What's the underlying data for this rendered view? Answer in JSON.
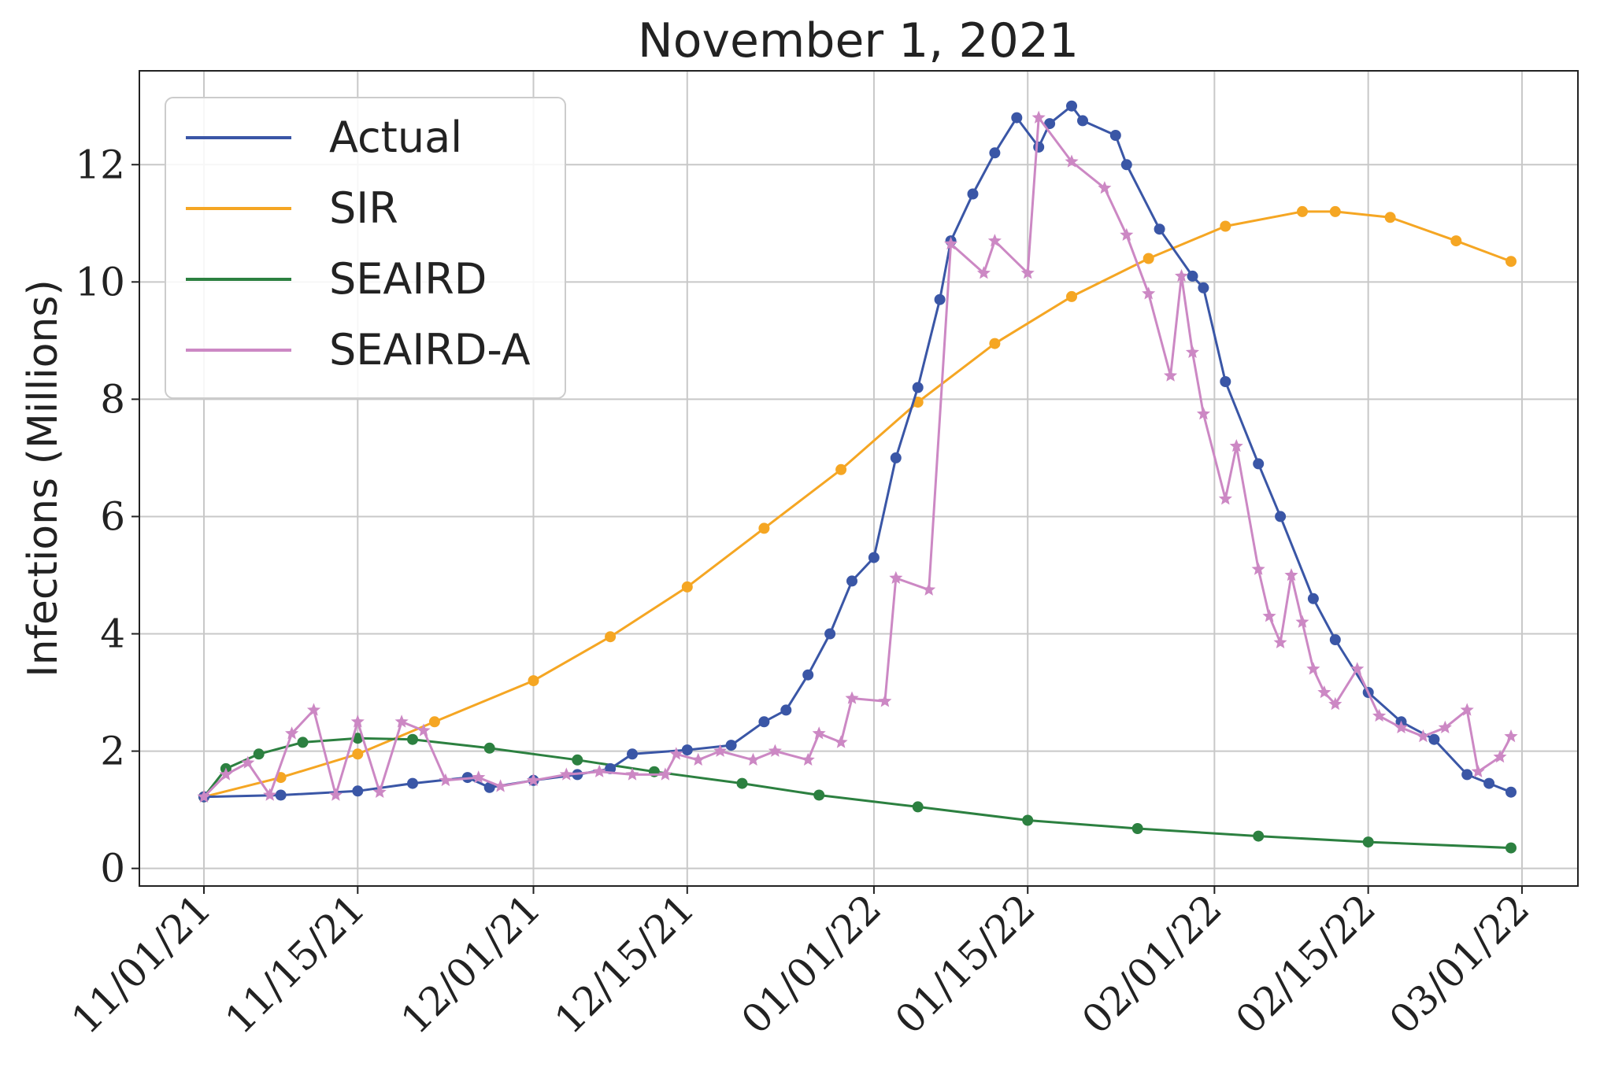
{
  "chart_data": {
    "type": "line",
    "title": "November 1, 2021",
    "xlabel": "",
    "ylabel": "Infections (Millions)",
    "x_start": "2021-11-01",
    "x_end": "2022-02-28",
    "ylim": [
      -0.3,
      13.6
    ],
    "grid": true,
    "legend_position": "top-left",
    "x_ticks": [
      {
        "date": "2021-11-01",
        "label": "11/01/21"
      },
      {
        "date": "2021-11-15",
        "label": "11/15/21"
      },
      {
        "date": "2021-12-01",
        "label": "12/01/21"
      },
      {
        "date": "2021-12-15",
        "label": "12/15/21"
      },
      {
        "date": "2022-01-01",
        "label": "01/01/22"
      },
      {
        "date": "2022-01-15",
        "label": "01/15/22"
      },
      {
        "date": "2022-02-01",
        "label": "02/01/22"
      },
      {
        "date": "2022-02-15",
        "label": "02/15/22"
      },
      {
        "date": "2022-03-01",
        "label": "03/01/22"
      }
    ],
    "y_ticks": [
      {
        "value": 0,
        "label": "0"
      },
      {
        "value": 2,
        "label": "2"
      },
      {
        "value": 4,
        "label": "4"
      },
      {
        "value": 6,
        "label": "6"
      },
      {
        "value": 8,
        "label": "8"
      },
      {
        "value": 10,
        "label": "10"
      },
      {
        "value": 12,
        "label": "12"
      }
    ],
    "series": [
      {
        "name": "Actual",
        "color": "#3a56a6",
        "marker": "circle",
        "points": [
          [
            "2021-11-01",
            1.22
          ],
          [
            "2021-11-08",
            1.25
          ],
          [
            "2021-11-15",
            1.32
          ],
          [
            "2021-11-20",
            1.45
          ],
          [
            "2021-11-25",
            1.55
          ],
          [
            "2021-11-27",
            1.38
          ],
          [
            "2021-12-01",
            1.5
          ],
          [
            "2021-12-05",
            1.6
          ],
          [
            "2021-12-08",
            1.7
          ],
          [
            "2021-12-10",
            1.95
          ],
          [
            "2021-12-15",
            2.02
          ],
          [
            "2021-12-19",
            2.1
          ],
          [
            "2021-12-22",
            2.5
          ],
          [
            "2021-12-24",
            2.7
          ],
          [
            "2021-12-26",
            3.3
          ],
          [
            "2021-12-28",
            4.0
          ],
          [
            "2021-12-30",
            4.9
          ],
          [
            "2022-01-01",
            5.3
          ],
          [
            "2022-01-03",
            7.0
          ],
          [
            "2022-01-05",
            8.2
          ],
          [
            "2022-01-07",
            9.7
          ],
          [
            "2022-01-08",
            10.7
          ],
          [
            "2022-01-10",
            11.5
          ],
          [
            "2022-01-12",
            12.2
          ],
          [
            "2022-01-14",
            12.8
          ],
          [
            "2022-01-16",
            12.3
          ],
          [
            "2022-01-17",
            12.7
          ],
          [
            "2022-01-19",
            13.0
          ],
          [
            "2022-01-20",
            12.75
          ],
          [
            "2022-01-23",
            12.5
          ],
          [
            "2022-01-24",
            12.0
          ],
          [
            "2022-01-27",
            10.9
          ],
          [
            "2022-01-30",
            10.1
          ],
          [
            "2022-01-31",
            9.9
          ],
          [
            "2022-02-02",
            8.3
          ],
          [
            "2022-02-05",
            6.9
          ],
          [
            "2022-02-07",
            6.0
          ],
          [
            "2022-02-10",
            4.6
          ],
          [
            "2022-02-12",
            3.9
          ],
          [
            "2022-02-15",
            3.0
          ],
          [
            "2022-02-18",
            2.5
          ],
          [
            "2022-02-21",
            2.2
          ],
          [
            "2022-02-24",
            1.6
          ],
          [
            "2022-02-26",
            1.45
          ],
          [
            "2022-02-28",
            1.3
          ]
        ]
      },
      {
        "name": "SIR",
        "color": "#f5a623",
        "marker": "circle",
        "points": [
          [
            "2021-11-01",
            1.22
          ],
          [
            "2021-11-08",
            1.55
          ],
          [
            "2021-11-15",
            1.95
          ],
          [
            "2021-11-22",
            2.5
          ],
          [
            "2021-12-01",
            3.2
          ],
          [
            "2021-12-08",
            3.95
          ],
          [
            "2021-12-15",
            4.8
          ],
          [
            "2021-12-22",
            5.8
          ],
          [
            "2021-12-29",
            6.8
          ],
          [
            "2022-01-05",
            7.95
          ],
          [
            "2022-01-12",
            8.95
          ],
          [
            "2022-01-19",
            9.75
          ],
          [
            "2022-01-26",
            10.4
          ],
          [
            "2022-02-02",
            10.95
          ],
          [
            "2022-02-09",
            11.2
          ],
          [
            "2022-02-12",
            11.2
          ],
          [
            "2022-02-17",
            11.1
          ],
          [
            "2022-02-23",
            10.7
          ],
          [
            "2022-02-28",
            10.35
          ]
        ]
      },
      {
        "name": "SEAIRD",
        "color": "#2c8040",
        "marker": "circle",
        "points": [
          [
            "2021-11-01",
            1.22
          ],
          [
            "2021-11-03",
            1.7
          ],
          [
            "2021-11-06",
            1.95
          ],
          [
            "2021-11-10",
            2.15
          ],
          [
            "2021-11-15",
            2.22
          ],
          [
            "2021-11-20",
            2.2
          ],
          [
            "2021-11-27",
            2.05
          ],
          [
            "2021-12-05",
            1.85
          ],
          [
            "2021-12-12",
            1.65
          ],
          [
            "2021-12-20",
            1.45
          ],
          [
            "2021-12-27",
            1.25
          ],
          [
            "2022-01-05",
            1.05
          ],
          [
            "2022-01-15",
            0.82
          ],
          [
            "2022-01-25",
            0.68
          ],
          [
            "2022-02-05",
            0.55
          ],
          [
            "2022-02-15",
            0.45
          ],
          [
            "2022-02-28",
            0.35
          ]
        ]
      },
      {
        "name": "SEAIRD-A",
        "color": "#cc88c4",
        "marker": "star",
        "points": [
          [
            "2021-11-01",
            1.22
          ],
          [
            "2021-11-03",
            1.6
          ],
          [
            "2021-11-05",
            1.8
          ],
          [
            "2021-11-07",
            1.25
          ],
          [
            "2021-11-09",
            2.3
          ],
          [
            "2021-11-11",
            2.7
          ],
          [
            "2021-11-13",
            1.25
          ],
          [
            "2021-11-15",
            2.5
          ],
          [
            "2021-11-17",
            1.3
          ],
          [
            "2021-11-19",
            2.5
          ],
          [
            "2021-11-21",
            2.35
          ],
          [
            "2021-11-23",
            1.5
          ],
          [
            "2021-11-26",
            1.55
          ],
          [
            "2021-11-28",
            1.4
          ],
          [
            "2021-12-01",
            1.5
          ],
          [
            "2021-12-04",
            1.6
          ],
          [
            "2021-12-07",
            1.65
          ],
          [
            "2021-12-10",
            1.6
          ],
          [
            "2021-12-13",
            1.6
          ],
          [
            "2021-12-14",
            1.95
          ],
          [
            "2021-12-16",
            1.85
          ],
          [
            "2021-12-18",
            2.0
          ],
          [
            "2021-12-21",
            1.85
          ],
          [
            "2021-12-23",
            2.0
          ],
          [
            "2021-12-26",
            1.85
          ],
          [
            "2021-12-27",
            2.3
          ],
          [
            "2021-12-29",
            2.15
          ],
          [
            "2021-12-30",
            2.9
          ],
          [
            "2022-01-02",
            2.85
          ],
          [
            "2022-01-03",
            4.95
          ],
          [
            "2022-01-06",
            4.75
          ],
          [
            "2022-01-08",
            10.65
          ],
          [
            "2022-01-11",
            10.15
          ],
          [
            "2022-01-12",
            10.7
          ],
          [
            "2022-01-15",
            10.15
          ],
          [
            "2022-01-16",
            12.8
          ],
          [
            "2022-01-19",
            12.05
          ],
          [
            "2022-01-22",
            11.6
          ],
          [
            "2022-01-24",
            10.8
          ],
          [
            "2022-01-26",
            9.8
          ],
          [
            "2022-01-28",
            8.4
          ],
          [
            "2022-01-29",
            10.1
          ],
          [
            "2022-01-30",
            8.8
          ],
          [
            "2022-01-31",
            7.75
          ],
          [
            "2022-02-02",
            6.3
          ],
          [
            "2022-02-03",
            7.2
          ],
          [
            "2022-02-05",
            5.1
          ],
          [
            "2022-02-06",
            4.3
          ],
          [
            "2022-02-07",
            3.85
          ],
          [
            "2022-02-08",
            5.0
          ],
          [
            "2022-02-09",
            4.2
          ],
          [
            "2022-02-10",
            3.4
          ],
          [
            "2022-02-11",
            3.0
          ],
          [
            "2022-02-12",
            2.8
          ],
          [
            "2022-02-14",
            3.4
          ],
          [
            "2022-02-16",
            2.6
          ],
          [
            "2022-02-18",
            2.4
          ],
          [
            "2022-02-20",
            2.25
          ],
          [
            "2022-02-22",
            2.4
          ],
          [
            "2022-02-24",
            2.7
          ],
          [
            "2022-02-25",
            1.65
          ],
          [
            "2022-02-27",
            1.9
          ],
          [
            "2022-02-28",
            2.25
          ]
        ]
      }
    ]
  }
}
